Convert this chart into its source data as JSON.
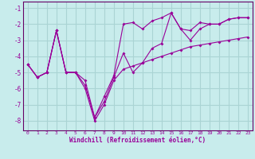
{
  "xlabel": "Windchill (Refroidissement éolien,°C)",
  "bg_color": "#c8ecec",
  "grid_color": "#aad4d4",
  "line_color": "#990099",
  "spine_color": "#660066",
  "xlim": [
    -0.5,
    23.5
  ],
  "ylim": [
    -8.6,
    -0.6
  ],
  "yticks": [
    -8,
    -7,
    -6,
    -5,
    -4,
    -3,
    -2,
    -1
  ],
  "xticks": [
    0,
    1,
    2,
    3,
    4,
    5,
    6,
    7,
    8,
    9,
    10,
    11,
    12,
    13,
    14,
    15,
    16,
    17,
    18,
    19,
    20,
    21,
    22,
    23
  ],
  "line1_x": [
    0,
    1,
    2,
    3,
    4,
    5,
    6,
    7,
    8,
    9,
    10,
    11,
    12,
    13,
    14,
    15,
    16,
    17,
    18,
    19,
    20,
    21,
    22,
    23
  ],
  "line1_y": [
    -4.5,
    -5.3,
    -5.0,
    -2.4,
    -5.0,
    -5.0,
    -6.0,
    -8.0,
    -7.0,
    -5.5,
    -4.8,
    -4.6,
    -4.4,
    -4.2,
    -4.0,
    -3.8,
    -3.6,
    -3.4,
    -3.3,
    -3.2,
    -3.1,
    -3.0,
    -2.9,
    -2.8
  ],
  "line2_x": [
    0,
    1,
    2,
    3,
    4,
    5,
    6,
    7,
    8,
    9,
    10,
    11,
    12,
    13,
    14,
    15,
    16,
    17,
    18,
    19,
    20,
    21,
    22,
    23
  ],
  "line2_y": [
    -4.5,
    -5.3,
    -5.0,
    -2.4,
    -5.0,
    -5.0,
    -5.5,
    -7.8,
    -6.5,
    -5.2,
    -2.0,
    -1.9,
    -2.3,
    -1.8,
    -1.6,
    -1.3,
    -2.3,
    -2.4,
    -1.9,
    -2.0,
    -2.0,
    -1.7,
    -1.6,
    -1.6
  ],
  "line3_x": [
    0,
    1,
    2,
    3,
    4,
    5,
    6,
    7,
    8,
    9,
    10,
    11,
    12,
    13,
    14,
    15,
    16,
    17,
    18,
    19,
    20,
    21,
    22,
    23
  ],
  "line3_y": [
    -4.5,
    -5.3,
    -5.0,
    -2.4,
    -5.0,
    -5.0,
    -5.8,
    -7.8,
    -6.8,
    -5.3,
    -3.8,
    -5.0,
    -4.4,
    -3.5,
    -3.2,
    -1.3,
    -2.3,
    -3.0,
    -2.3,
    -2.0,
    -2.0,
    -1.7,
    -1.6,
    -1.6
  ]
}
